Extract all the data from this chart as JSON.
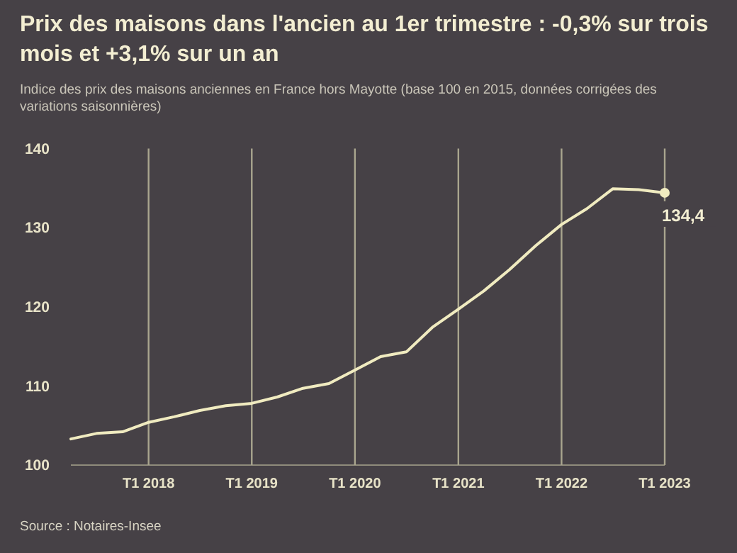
{
  "chart_data": {
    "type": "line",
    "title": "Prix des maisons dans l'ancien au 1er trimestre : -0,3% sur trois mois et +3,1% sur un an",
    "subtitle": "Indice des prix des maisons anciennes en France hors Mayotte (base 100 en 2015, données corrigées des variations saisonnières)",
    "x": [
      "2017-04",
      "2017-07",
      "2017-10",
      "2018-01",
      "2018-04",
      "2018-07",
      "2018-10",
      "2019-01",
      "2019-04",
      "2019-07",
      "2019-10",
      "2020-01",
      "2020-04",
      "2020-07",
      "2020-10",
      "2021-01",
      "2021-04",
      "2021-07",
      "2021-10",
      "2022-01",
      "2022-04",
      "2022-07",
      "2022-10",
      "2023-01"
    ],
    "series": [
      {
        "color": "#f0ebc0",
        "values": [
          103.3,
          104.0,
          104.2,
          105.4,
          106.1,
          106.9,
          107.5,
          107.8,
          108.6,
          109.7,
          110.3,
          112.0,
          113.7,
          114.3,
          117.4,
          119.7,
          122.0,
          124.7,
          127.7,
          130.4,
          132.4,
          134.9,
          134.8,
          134.4
        ]
      }
    ],
    "xticks": [
      {
        "value": "2018-01",
        "label": "T1 2018"
      },
      {
        "value": "2019-01",
        "label": "T1 2019"
      },
      {
        "value": "2020-01",
        "label": "T1 2020"
      },
      {
        "value": "2021-01",
        "label": "T1 2021"
      },
      {
        "value": "2022-01",
        "label": "T1 2022"
      },
      {
        "value": "2023-01",
        "label": "T1 2023"
      }
    ],
    "ylim": [
      100,
      140
    ],
    "yticks": [
      100,
      110,
      120,
      130,
      140
    ],
    "xlim": [
      "2017-04",
      "2023-01"
    ],
    "grid": "x",
    "marker": "none",
    "line_style": "solid",
    "annotations": [
      {
        "text": "134,4",
        "x": "2023-01",
        "y": 134.4
      },
      "Source : Notaires-Insee"
    ]
  }
}
